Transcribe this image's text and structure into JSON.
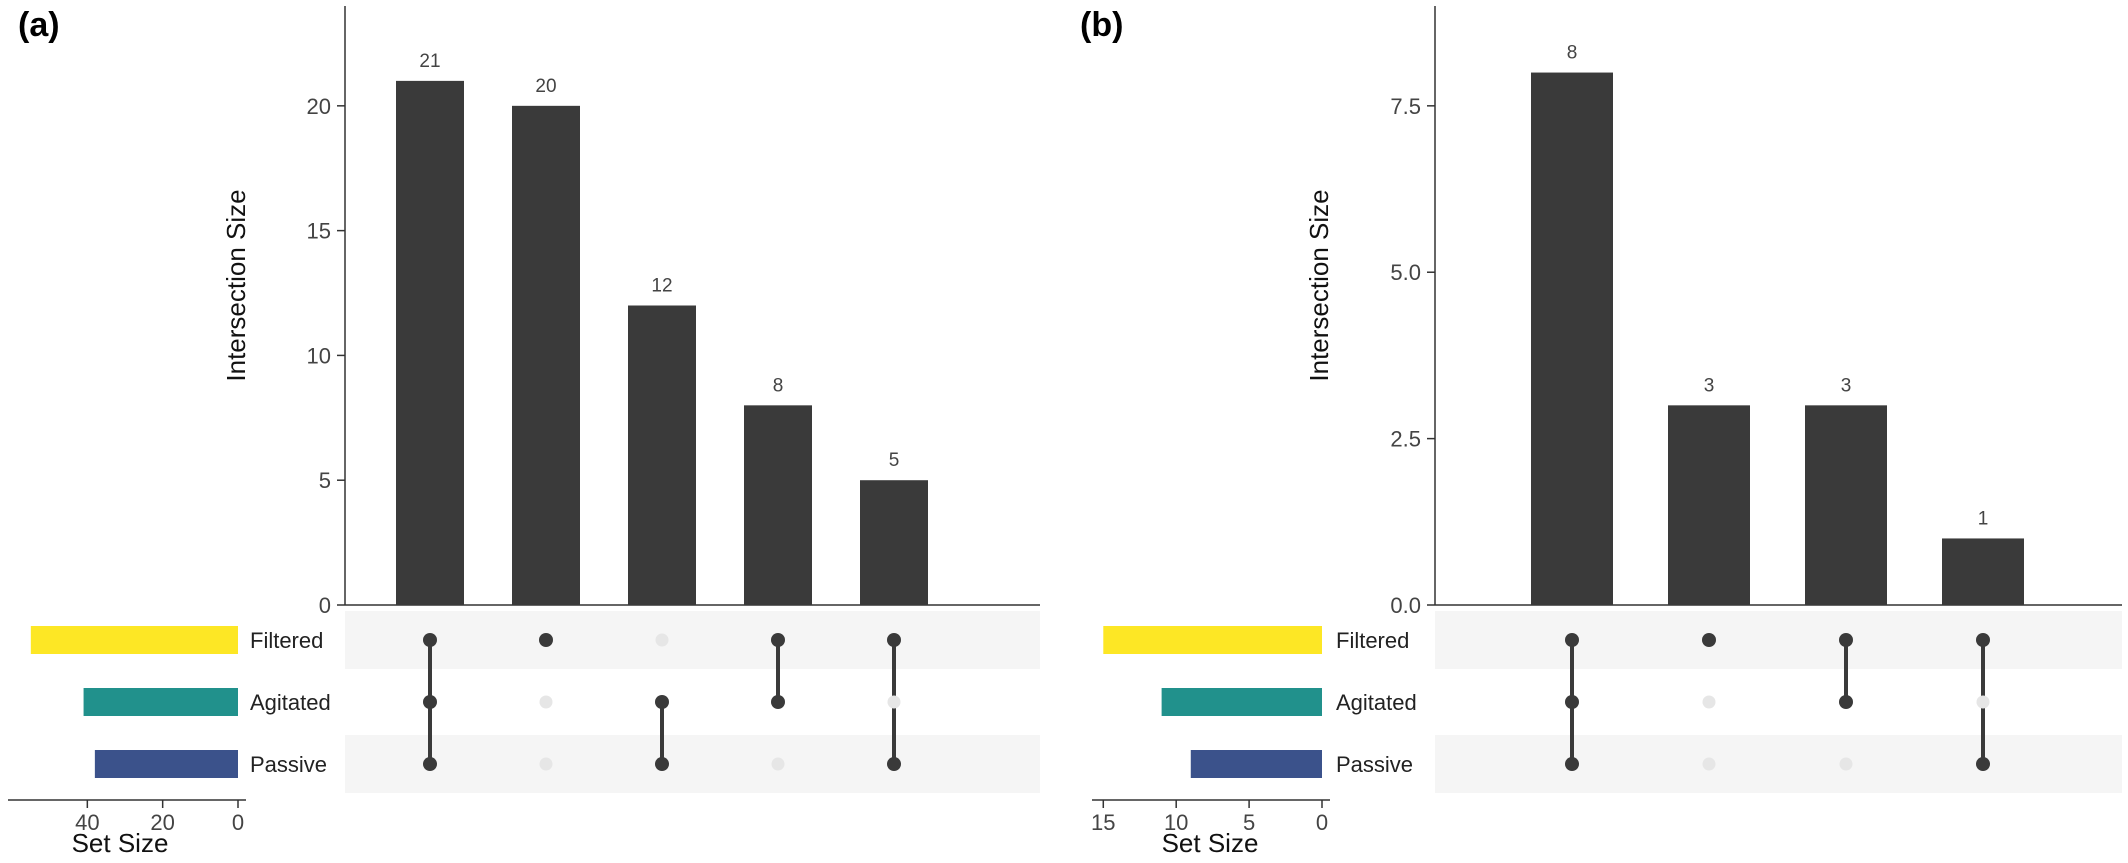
{
  "chart_data": [
    {
      "panel": "(a)",
      "type": "bar",
      "subtype": "upset",
      "ylabel": "Intersection Size",
      "ylim": [
        0,
        24
      ],
      "yticks": [
        "0",
        "5",
        "10",
        "15",
        "20"
      ],
      "xlabel_sets": "Set Size",
      "set_size_ticks": [
        "40",
        "20",
        "0"
      ],
      "set_size_max": 60,
      "sets": [
        {
          "name": "Filtered",
          "size": 55,
          "color": "#FDE725"
        },
        {
          "name": "Agitated",
          "size": 41,
          "color": "#21918C"
        },
        {
          "name": "Passive",
          "size": 38,
          "color": "#3B528B"
        }
      ],
      "intersections": [
        {
          "value": 21,
          "label": "21",
          "members": [
            true,
            true,
            true
          ]
        },
        {
          "value": 20,
          "label": "20",
          "members": [
            true,
            false,
            false
          ]
        },
        {
          "value": 12,
          "label": "12",
          "members": [
            false,
            true,
            true
          ]
        },
        {
          "value": 8,
          "label": "8",
          "members": [
            true,
            true,
            false
          ]
        },
        {
          "value": 5,
          "label": "5",
          "members": [
            true,
            false,
            true
          ]
        }
      ]
    },
    {
      "panel": "(b)",
      "type": "bar",
      "subtype": "upset",
      "ylabel": "Intersection Size",
      "ylim": [
        0,
        9
      ],
      "yticks": [
        "0.0",
        "2.5",
        "5.0",
        "7.5"
      ],
      "xlabel_sets": "Set Size",
      "set_size_ticks": [
        "15",
        "10",
        "5",
        "0"
      ],
      "set_size_max": 15.5,
      "sets": [
        {
          "name": "Filtered",
          "size": 15,
          "color": "#FDE725"
        },
        {
          "name": "Agitated",
          "size": 11,
          "color": "#21918C"
        },
        {
          "name": "Passive",
          "size": 9,
          "color": "#3B528B"
        }
      ],
      "intersections": [
        {
          "value": 8,
          "label": "8",
          "members": [
            true,
            true,
            true
          ]
        },
        {
          "value": 3,
          "label": "3",
          "members": [
            true,
            false,
            false
          ]
        },
        {
          "value": 3,
          "label": "3",
          "members": [
            true,
            true,
            false
          ]
        },
        {
          "value": 1,
          "label": "1",
          "members": [
            true,
            false,
            true
          ]
        }
      ]
    }
  ],
  "colors": {
    "bar": "#3a3a3a",
    "dot_on": "#3a3a3a",
    "dot_off": "#e6e6e6",
    "row_band": "#f5f5f5",
    "axis": "#333333"
  }
}
